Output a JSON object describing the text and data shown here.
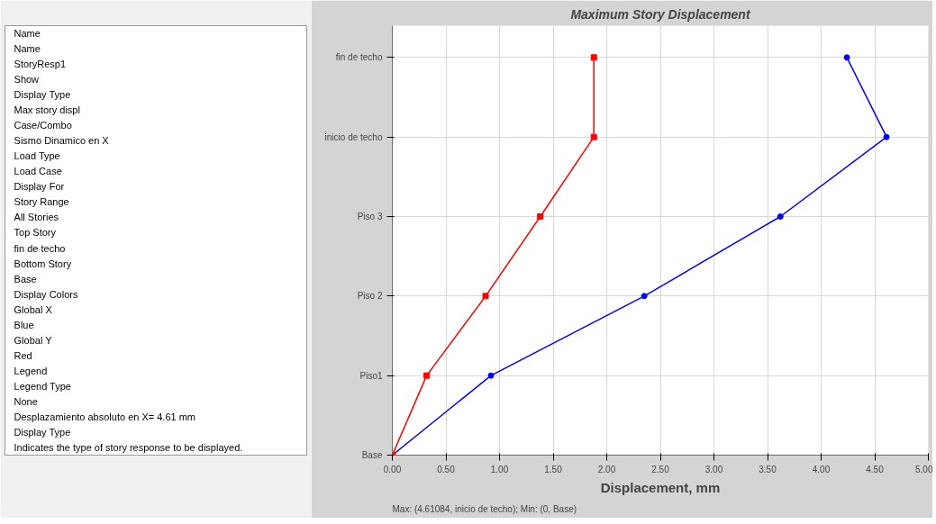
{
  "chart_data": [
    {
      "type": "other",
      "annotations": [
        "Name",
        "Name",
        "StoryResp1",
        "Show",
        "Display Type",
        "Max story displ",
        "Case/Combo",
        "Sismo Dinamico en X",
        "Load Type",
        "Load Case",
        "Display For",
        "Story Range",
        "All Stories",
        "Top Story",
        "fin de techo",
        "Bottom Story",
        "Base",
        "Display Colors",
        "Global X",
        "Blue",
        "Global Y",
        "Red",
        "Legend",
        "Legend Type",
        "None",
        "Desplazamiento absoluto en X= 4.61 mm",
        "Display Type",
        "Indicates the type of story response to be displayed."
      ]
    },
    {
      "type": "line",
      "title": "Maximum Story Displacement",
      "xlabel": "Displacement, mm",
      "xlim": [
        0,
        5
      ],
      "xticks": [
        {
          "value": 0,
          "label": "0.00"
        },
        {
          "value": 0.5,
          "label": "0.50"
        },
        {
          "value": 1,
          "label": "1.00"
        },
        {
          "value": 1.5,
          "label": "1.50"
        },
        {
          "value": 2,
          "label": "2.00"
        },
        {
          "value": 2.5,
          "label": "2.50"
        },
        {
          "value": 3,
          "label": "3.00"
        },
        {
          "value": 3.5,
          "label": "3.50"
        },
        {
          "value": 4,
          "label": "4.00"
        },
        {
          "value": 4.5,
          "label": "4.50"
        },
        {
          "value": 5,
          "label": "5.00"
        }
      ],
      "orientation": "horizontal",
      "categories": [
        "fin de techo",
        "inicio de techo",
        "Piso 3",
        "Piso 2",
        "Piso1",
        "Base"
      ],
      "grid": true,
      "line_style": "solid",
      "series": [
        {
          "color": "#0000ff",
          "marker": "circle",
          "values": [
            4.24,
            4.61,
            3.62,
            2.35,
            0.92,
            0
          ]
        },
        {
          "color": "#ff0000",
          "marker": "square",
          "values": [
            1.88,
            1.88,
            1.38,
            0.87,
            0.32,
            0
          ]
        }
      ],
      "annotations": [
        "Max: (4.61084, inicio de techo);  Min: (0, Base)"
      ]
    }
  ]
}
